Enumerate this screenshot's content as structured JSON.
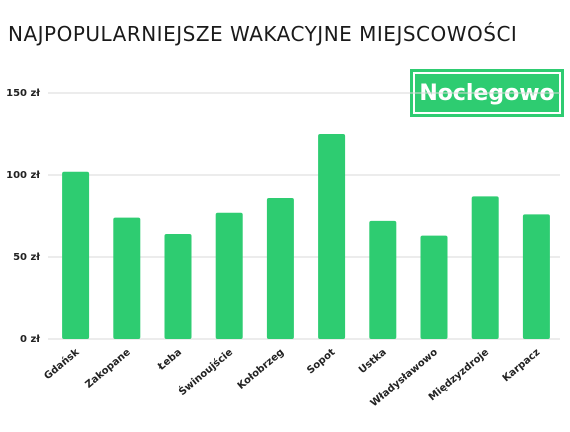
{
  "title": "NAJPOPULARNIEJSZE WAKACYJNE MIEJSCOWOŚCI",
  "logo_text": "Noclegowo",
  "colors": {
    "bar": "#2ecc71",
    "grid": "#d9d9d9",
    "logo_bg": "#2ecc71"
  },
  "chart_data": {
    "type": "bar",
    "categories": [
      "Gdańsk",
      "Zakopane",
      "Łeba",
      "Świnoujście",
      "Kołobrzeg",
      "Sopot",
      "Ustka",
      "Władysławowo",
      "Międzyzdroje",
      "Karpacz"
    ],
    "values": [
      102,
      74,
      64,
      77,
      86,
      125,
      72,
      63,
      87,
      76
    ],
    "yticks": [
      0,
      50,
      100,
      150
    ],
    "ytick_labels": [
      "0 zł",
      "50 zł",
      "100 zł",
      "150 zł"
    ],
    "ylim": [
      0,
      150
    ],
    "grid": true
  }
}
